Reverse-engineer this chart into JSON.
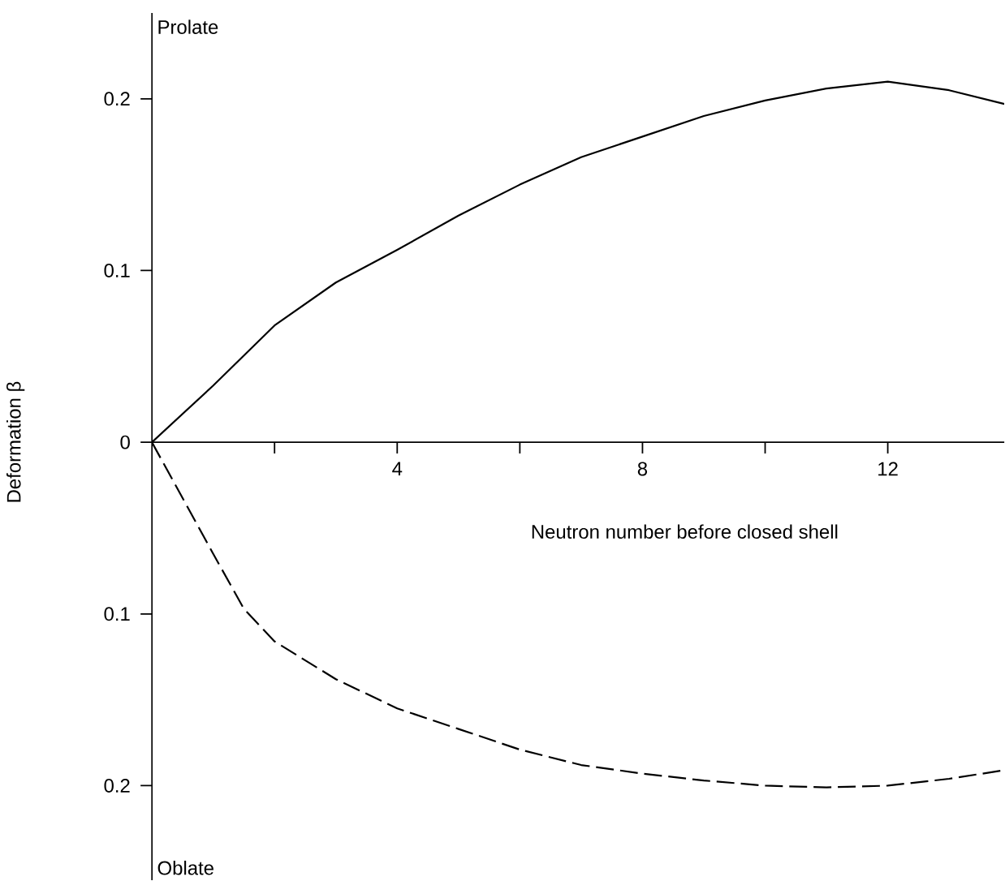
{
  "chart_data": {
    "type": "line",
    "xlabel": "Neutron number before closed shell",
    "ylabel": "Deformation β",
    "annotations": [
      "Prolate",
      "Oblate"
    ],
    "xlim": [
      0,
      13.9
    ],
    "ylim": [
      -0.255,
      0.25
    ],
    "xticks": [
      {
        "value": 2,
        "label": null
      },
      4,
      {
        "value": 6,
        "label": null
      },
      8,
      {
        "value": 10,
        "label": null
      },
      12
    ],
    "yticks": [
      {
        "value": -0.2,
        "label": "0.2"
      },
      {
        "value": -0.1,
        "label": "0.1"
      },
      0,
      0.1,
      0.2
    ],
    "series": [
      {
        "color": "#000000",
        "line_style": "solid",
        "x": [
          0,
          1,
          2,
          3,
          4,
          5,
          6,
          7,
          8,
          9,
          10,
          11,
          12,
          13,
          13.9
        ],
        "values": [
          0,
          0.033,
          0.068,
          0.093,
          0.112,
          0.132,
          0.15,
          0.166,
          0.178,
          0.19,
          0.199,
          0.206,
          0.21,
          0.205,
          0.197
        ]
      },
      {
        "color": "#000000",
        "line_style": "dashed",
        "x": [
          0,
          1,
          1.5,
          2,
          3,
          4,
          5,
          6,
          7,
          8,
          9,
          10,
          11,
          12,
          13,
          13.9
        ],
        "values": [
          0,
          -0.065,
          -0.097,
          -0.116,
          -0.138,
          -0.155,
          -0.167,
          -0.179,
          -0.188,
          -0.193,
          -0.197,
          -0.2,
          -0.201,
          -0.2,
          -0.196,
          -0.191
        ]
      }
    ]
  }
}
